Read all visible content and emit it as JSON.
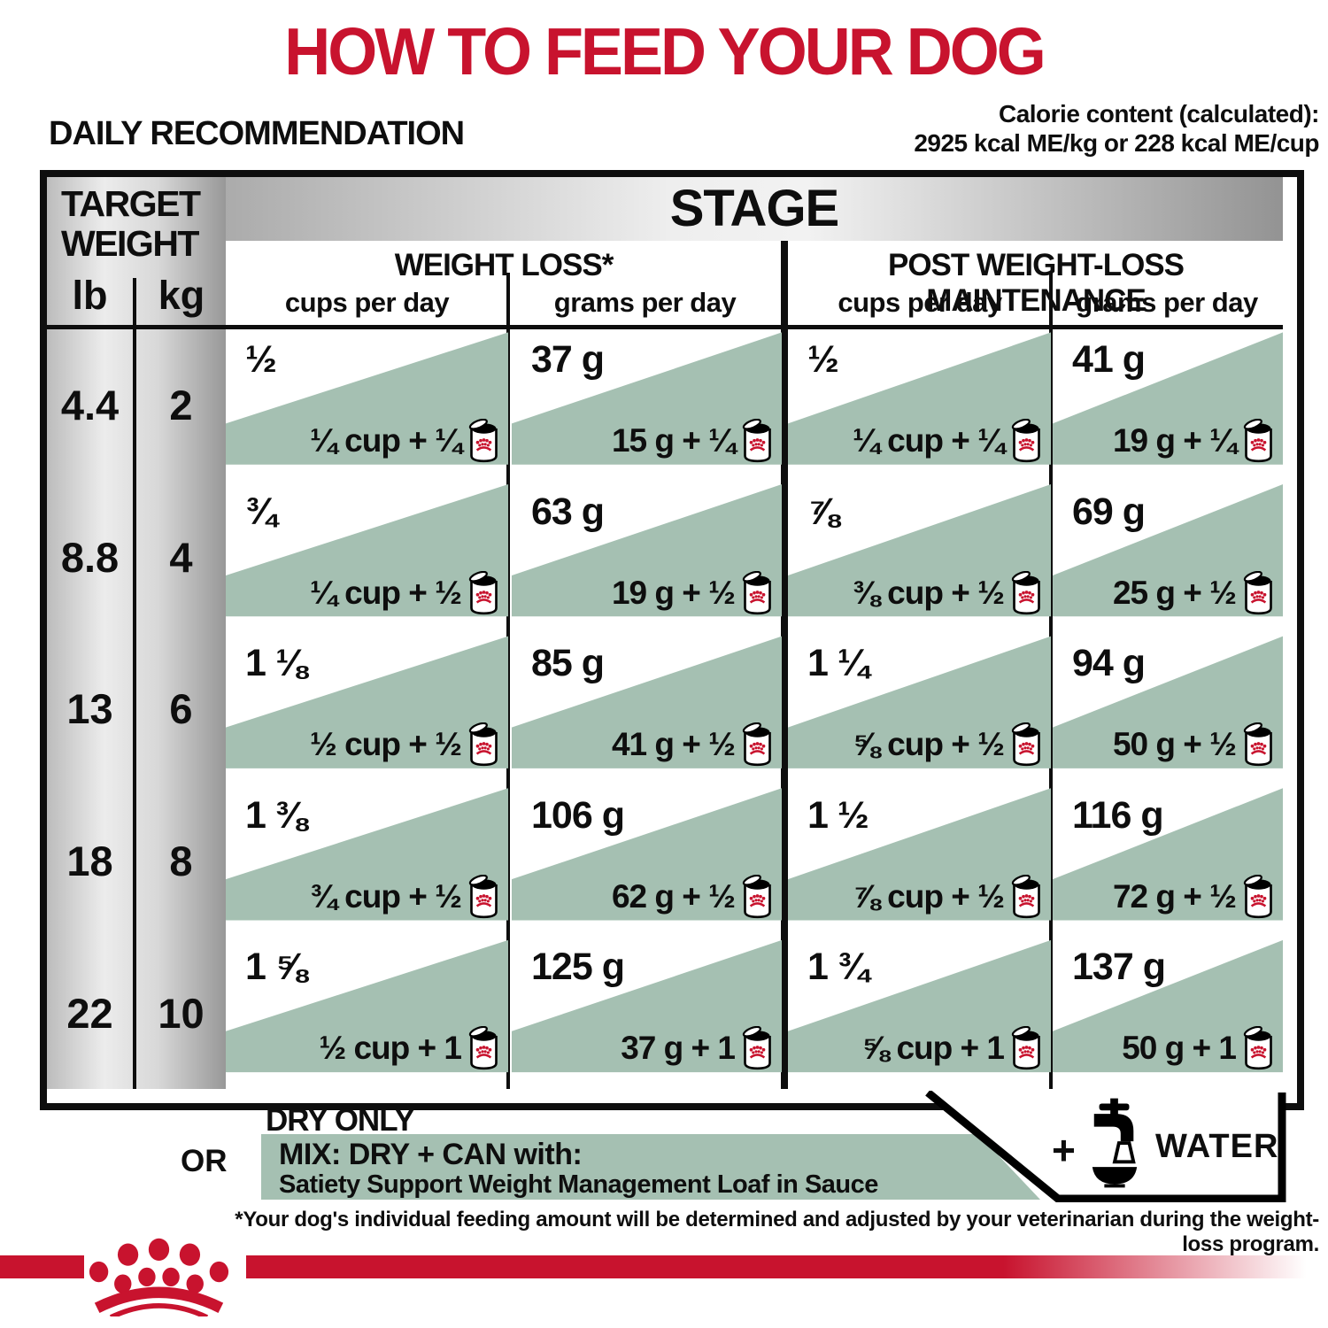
{
  "page": {
    "title": "HOW TO FEED YOUR DOG",
    "section_label": "DAILY RECOMMENDATION",
    "calorie_line1": "Calorie content (calculated):",
    "calorie_line2": "2925 kcal ME/kg or 228 kcal ME/cup"
  },
  "table": {
    "target_weight_label": "TARGET WEIGHT",
    "unit_lb": "lb",
    "unit_kg": "kg",
    "stage_label": "STAGE",
    "groups": [
      {
        "label": "WEIGHT LOSS*",
        "columns": [
          "cups per day",
          "grams per day"
        ]
      },
      {
        "label": "POST WEIGHT-LOSS MAINTENANCE",
        "columns": [
          "cups per day",
          "grams per day"
        ]
      }
    ],
    "rows": [
      {
        "lb": "4.4",
        "kg": "2",
        "cells": [
          {
            "dry": "½",
            "mix": "¼ cup + ¼"
          },
          {
            "dry": "37 g",
            "mix": "15 g + ¼"
          },
          {
            "dry": "½",
            "mix": "¼ cup + ¼"
          },
          {
            "dry": "41 g",
            "mix": "19 g + ¼"
          }
        ]
      },
      {
        "lb": "8.8",
        "kg": "4",
        "cells": [
          {
            "dry": "¾",
            "mix": "¼ cup + ½"
          },
          {
            "dry": "63 g",
            "mix": "19 g + ½"
          },
          {
            "dry": "⅞",
            "mix": "⅜ cup + ½"
          },
          {
            "dry": "69 g",
            "mix": "25 g + ½"
          }
        ]
      },
      {
        "lb": "13",
        "kg": "6",
        "cells": [
          {
            "dry": "1 ⅛",
            "mix": "½ cup + ½"
          },
          {
            "dry": "85 g",
            "mix": "41 g + ½"
          },
          {
            "dry": "1 ¼",
            "mix": "⅝ cup + ½"
          },
          {
            "dry": "94 g",
            "mix": "50 g + ½"
          }
        ]
      },
      {
        "lb": "18",
        "kg": "8",
        "cells": [
          {
            "dry": "1 ⅜",
            "mix": "¾ cup + ½"
          },
          {
            "dry": "106 g",
            "mix": "62 g + ½"
          },
          {
            "dry": "1 ½",
            "mix": "⅞ cup + ½"
          },
          {
            "dry": "116 g",
            "mix": "72 g + ½"
          }
        ]
      },
      {
        "lb": "22",
        "kg": "10",
        "cells": [
          {
            "dry": "1 ⅝",
            "mix": "½ cup + 1"
          },
          {
            "dry": "125 g",
            "mix": "37 g + 1"
          },
          {
            "dry": "1 ¾",
            "mix": "⅝ cup + 1"
          },
          {
            "dry": "137 g",
            "mix": "50 g + 1"
          }
        ]
      }
    ]
  },
  "legend": {
    "dry_only": "DRY ONLY",
    "or": "OR",
    "mix_title": "MIX: DRY + CAN with:",
    "mix_subtitle": "Satiety Support Weight Management Loaf in Sauce",
    "water_plus": "+",
    "water_label": "WATER"
  },
  "footnote": "*Your dog's individual feeding amount will be determined and adjusted by your veterinarian during the weight-loss program.",
  "icons": {
    "can": "open-can-with-crown-label-icon",
    "water": "faucet-over-bowl-icon",
    "crown": "royal-canin-crown-logo"
  },
  "colors": {
    "red": "#c8132e",
    "green": "#a5c0b2",
    "black": "#0e0e0e"
  }
}
